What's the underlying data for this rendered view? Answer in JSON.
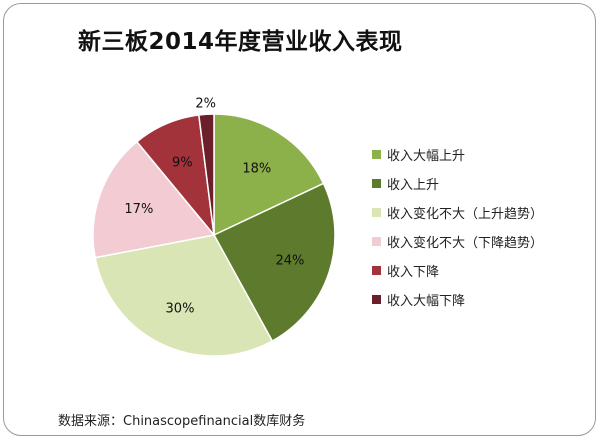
{
  "title": "新三板2014年度营业收入表现",
  "source": "数据来源：Chinascopefinancial数库财务",
  "chart_data": {
    "type": "pie",
    "title": "新三板2014年度营业收入表现",
    "legend_position": "right",
    "slices": [
      {
        "name": "收入大幅上升",
        "value": 18,
        "label": "18%",
        "color": "#8CB04A"
      },
      {
        "name": "收入上升",
        "value": 24,
        "label": "24%",
        "color": "#5E7A2C"
      },
      {
        "name": "收入变化不大（上升趋势）",
        "value": 30,
        "label": "30%",
        "color": "#D9E5B4"
      },
      {
        "name": "收入变化不大（下降趋势）",
        "value": 17,
        "label": "17%",
        "color": "#F2CCD2"
      },
      {
        "name": "收入下降",
        "value": 9,
        "label": "9%",
        "color": "#A3333B"
      },
      {
        "name": "收入大幅下降",
        "value": 2,
        "label": "2%",
        "color": "#6A1F2A"
      }
    ]
  }
}
